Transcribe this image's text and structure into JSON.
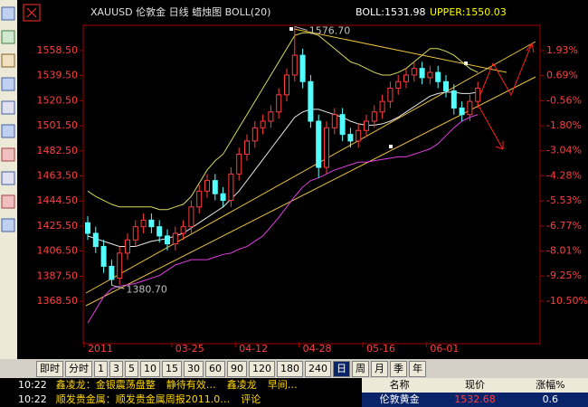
{
  "chart_data": {
    "type": "candlestick",
    "title": "XAUUSD 伦敦金 日线 蜡烛图 BOLL(20)",
    "indicator_labels": [
      {
        "text": "BOLL:1531.98",
        "color": "#ffffff"
      },
      {
        "text": "UPPER:1550.03",
        "color": "#ffff00"
      }
    ],
    "categories": [
      "2011",
      null,
      null,
      null,
      null,
      null,
      null,
      null,
      null,
      null,
      null,
      "03-25",
      null,
      null,
      null,
      null,
      null,
      null,
      null,
      "04-12",
      null,
      null,
      null,
      null,
      null,
      null,
      null,
      "04-28",
      null,
      null,
      null,
      null,
      null,
      null,
      null,
      "05-16",
      null,
      null,
      null,
      null,
      null,
      null,
      null,
      "06-01",
      null,
      null,
      null,
      null,
      null,
      null
    ],
    "open": [
      1428,
      1420,
      1410,
      1395,
      1386,
      1405,
      1415,
      1425,
      1430,
      1425,
      1418,
      1412,
      1420,
      1425,
      1440,
      1452,
      1460,
      1450,
      1445,
      1465,
      1480,
      1490,
      1500,
      1505,
      1512,
      1525,
      1540,
      1555,
      1535,
      1505,
      1470,
      1500,
      1510,
      1495,
      1490,
      1498,
      1505,
      1512,
      1520,
      1530,
      1535,
      1540,
      1545,
      1538,
      1542,
      1535,
      1528,
      1515,
      1510,
      1520
    ],
    "high": [
      1433,
      1425,
      1415,
      1400,
      1410,
      1420,
      1430,
      1435,
      1435,
      1430,
      1423,
      1425,
      1430,
      1445,
      1457,
      1465,
      1465,
      1455,
      1470,
      1485,
      1495,
      1505,
      1510,
      1517,
      1530,
      1545,
      1576.7,
      1560,
      1540,
      1510,
      1505,
      1515,
      1515,
      1500,
      1503,
      1510,
      1517,
      1525,
      1535,
      1540,
      1545,
      1550,
      1550,
      1547,
      1547,
      1540,
      1533,
      1520,
      1525,
      1535
    ],
    "low": [
      1415,
      1405,
      1390,
      1380.7,
      1381,
      1400,
      1410,
      1420,
      1420,
      1413,
      1407,
      1407,
      1415,
      1420,
      1435,
      1447,
      1445,
      1440,
      1440,
      1460,
      1475,
      1485,
      1495,
      1500,
      1507,
      1520,
      1535,
      1530,
      1500,
      1462,
      1465,
      1495,
      1490,
      1485,
      1485,
      1493,
      1500,
      1507,
      1515,
      1525,
      1530,
      1535,
      1533,
      1533,
      1530,
      1523,
      1510,
      1505,
      1505,
      1515
    ],
    "close": [
      1420,
      1410,
      1395,
      1385,
      1405,
      1415,
      1425,
      1430,
      1425,
      1418,
      1412,
      1420,
      1425,
      1440,
      1452,
      1460,
      1450,
      1445,
      1465,
      1480,
      1490,
      1500,
      1505,
      1512,
      1525,
      1540,
      1555,
      1535,
      1505,
      1470,
      1500,
      1510,
      1495,
      1490,
      1498,
      1505,
      1512,
      1520,
      1530,
      1535,
      1540,
      1545,
      1538,
      1542,
      1535,
      1528,
      1515,
      1510,
      1520,
      1530
    ],
    "up_color": "#ff3c3c",
    "down_color": "#54ffff",
    "overlays": [
      {
        "color": "#d8d860",
        "values": [
          1452,
          1448,
          1445,
          1442,
          1440,
          1440,
          1440,
          1440,
          1440,
          1438,
          1438,
          1440,
          1442,
          1448,
          1458,
          1468,
          1475,
          1480,
          1490,
          1500,
          1510,
          1520,
          1530,
          1540,
          1550,
          1560,
          1570,
          1572,
          1572,
          1570,
          1565,
          1560,
          1555,
          1550,
          1548,
          1545,
          1542,
          1540,
          1540,
          1542,
          1545,
          1550,
          1555,
          1560,
          1560,
          1558,
          1555,
          1550,
          1545,
          1542
        ]
      },
      {
        "color": "#e8e8e8",
        "values": [
          1418,
          1416,
          1414,
          1412,
          1410,
          1410,
          1410,
          1412,
          1414,
          1415,
          1416,
          1418,
          1420,
          1424,
          1428,
          1432,
          1436,
          1440,
          1446,
          1452,
          1460,
          1468,
          1476,
          1484,
          1492,
          1500,
          1508,
          1512,
          1514,
          1514,
          1512,
          1510,
          1508,
          1505,
          1503,
          1502,
          1502,
          1503,
          1505,
          1508,
          1512,
          1516,
          1520,
          1524,
          1526,
          1527,
          1527,
          1526,
          1526,
          1527
        ]
      },
      {
        "color": "#e040e0",
        "values": [
          1352,
          1362,
          1372,
          1378,
          1380,
          1381,
          1382,
          1384,
          1386,
          1388,
          1392,
          1396,
          1398,
          1400,
          1400,
          1400,
          1402,
          1404,
          1405,
          1408,
          1410,
          1414,
          1418,
          1425,
          1432,
          1440,
          1448,
          1455,
          1460,
          1462,
          1465,
          1468,
          1470,
          1472,
          1474,
          1474,
          1475,
          1476,
          1477,
          1478,
          1478,
          1480,
          1482,
          1484,
          1488,
          1494,
          1500,
          1505,
          1508,
          1510
        ]
      }
    ],
    "annotations": [
      "1576.70",
      "1380.70"
    ],
    "ylim": [
      1337.7,
      1577.0
    ],
    "yticks": [
      {
        "value": 1558.5,
        "label": "1558.50"
      },
      {
        "value": 1539.5,
        "label": "1539.50"
      },
      {
        "value": 1520.5,
        "label": "1520.50"
      },
      {
        "value": 1501.5,
        "label": "1501.50"
      },
      {
        "value": 1482.5,
        "label": "1482.50"
      },
      {
        "value": 1463.5,
        "label": "1463.50"
      },
      {
        "value": 1444.5,
        "label": "1444.50"
      },
      {
        "value": 1425.5,
        "label": "1425.50"
      },
      {
        "value": 1406.5,
        "label": "1406.50"
      },
      {
        "value": 1387.5,
        "label": "1387.50"
      },
      {
        "value": 1368.5,
        "label": "1368.50"
      }
    ],
    "y2lim": [
      -12.52,
      3.14
    ],
    "y2ticks": [
      {
        "value": 1.93,
        "label": "1.93%"
      },
      {
        "value": 0.69,
        "label": "0.69%"
      },
      {
        "value": -0.56,
        "label": "-0.56%"
      },
      {
        "value": -1.8,
        "label": "-1.80%"
      },
      {
        "value": -3.04,
        "label": "-3.04%"
      },
      {
        "value": -4.28,
        "label": "-4.28%"
      },
      {
        "value": -5.53,
        "label": "-5.53%"
      },
      {
        "value": -6.77,
        "label": "-6.77%"
      },
      {
        "value": -8.01,
        "label": "-8.01%"
      },
      {
        "value": -9.25,
        "label": "-9.25%"
      },
      {
        "value": -10.5,
        "label": "-10.50%"
      }
    ]
  },
  "period_bar": {
    "buttons": [
      "即时",
      "分时",
      "1",
      "3",
      "5",
      "10",
      "15",
      "30",
      "60",
      "90",
      "120",
      "180",
      "240",
      "日",
      "周",
      "月",
      "季",
      "年"
    ],
    "selected_index": 13
  },
  "news": [
    {
      "time": "10:22",
      "items": [
        "鑫凌龙：金银震荡盘整",
        "静待有效…",
        "鑫凌龙",
        "早间…"
      ]
    },
    {
      "time": "10:22",
      "items": [
        "顺发贵金属：顺发贵金属周报2011.0…",
        "评论"
      ]
    }
  ],
  "quote_table": {
    "headers": [
      "名称",
      "现价",
      "涨幅%"
    ],
    "rows": [
      [
        "伦敦黄金",
        "1532.68",
        "0.6"
      ]
    ]
  }
}
